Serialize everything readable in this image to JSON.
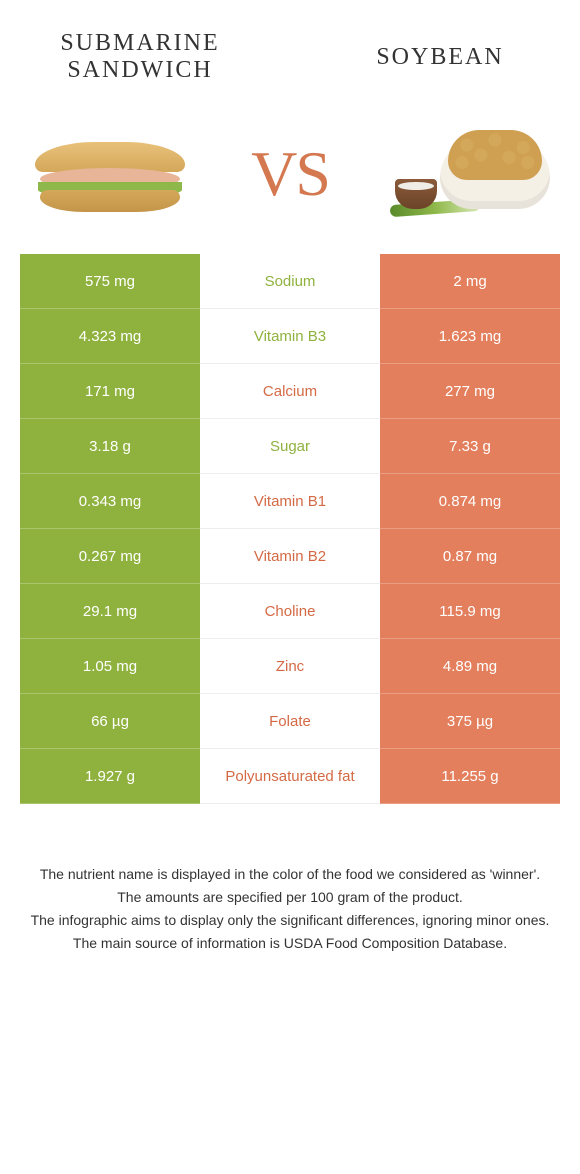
{
  "header": {
    "left_title_line1": "SUBMARINE",
    "left_title_line2": "SANDWICH",
    "right_title": "SOYBEAN",
    "vs_text": "VS"
  },
  "colors": {
    "left": "#8fb23e",
    "right": "#e37f5c",
    "nutrient_left_text": "#8fb23e",
    "nutrient_right_text": "#d46a45"
  },
  "rows": [
    {
      "nutrient": "Sodium",
      "left": "575 mg",
      "right": "2 mg",
      "winner": "left"
    },
    {
      "nutrient": "Vitamin B3",
      "left": "4.323 mg",
      "right": "1.623 mg",
      "winner": "left"
    },
    {
      "nutrient": "Calcium",
      "left": "171 mg",
      "right": "277 mg",
      "winner": "right"
    },
    {
      "nutrient": "Sugar",
      "left": "3.18 g",
      "right": "7.33 g",
      "winner": "left"
    },
    {
      "nutrient": "Vitamin B1",
      "left": "0.343 mg",
      "right": "0.874 mg",
      "winner": "right"
    },
    {
      "nutrient": "Vitamin B2",
      "left": "0.267 mg",
      "right": "0.87 mg",
      "winner": "right"
    },
    {
      "nutrient": "Choline",
      "left": "29.1 mg",
      "right": "115.9 mg",
      "winner": "right"
    },
    {
      "nutrient": "Zinc",
      "left": "1.05 mg",
      "right": "4.89 mg",
      "winner": "right"
    },
    {
      "nutrient": "Folate",
      "left": "66 µg",
      "right": "375 µg",
      "winner": "right"
    },
    {
      "nutrient": "Polyunsaturated fat",
      "left": "1.927 g",
      "right": "11.255 g",
      "winner": "right"
    }
  ],
  "footnotes": [
    "The nutrient name is displayed in the color of the food we considered as 'winner'.",
    "The amounts are specified per 100 gram of the product.",
    "The infographic aims to display only the significant differences, ignoring minor ones.",
    "The main source of information is USDA Food Composition Database."
  ]
}
